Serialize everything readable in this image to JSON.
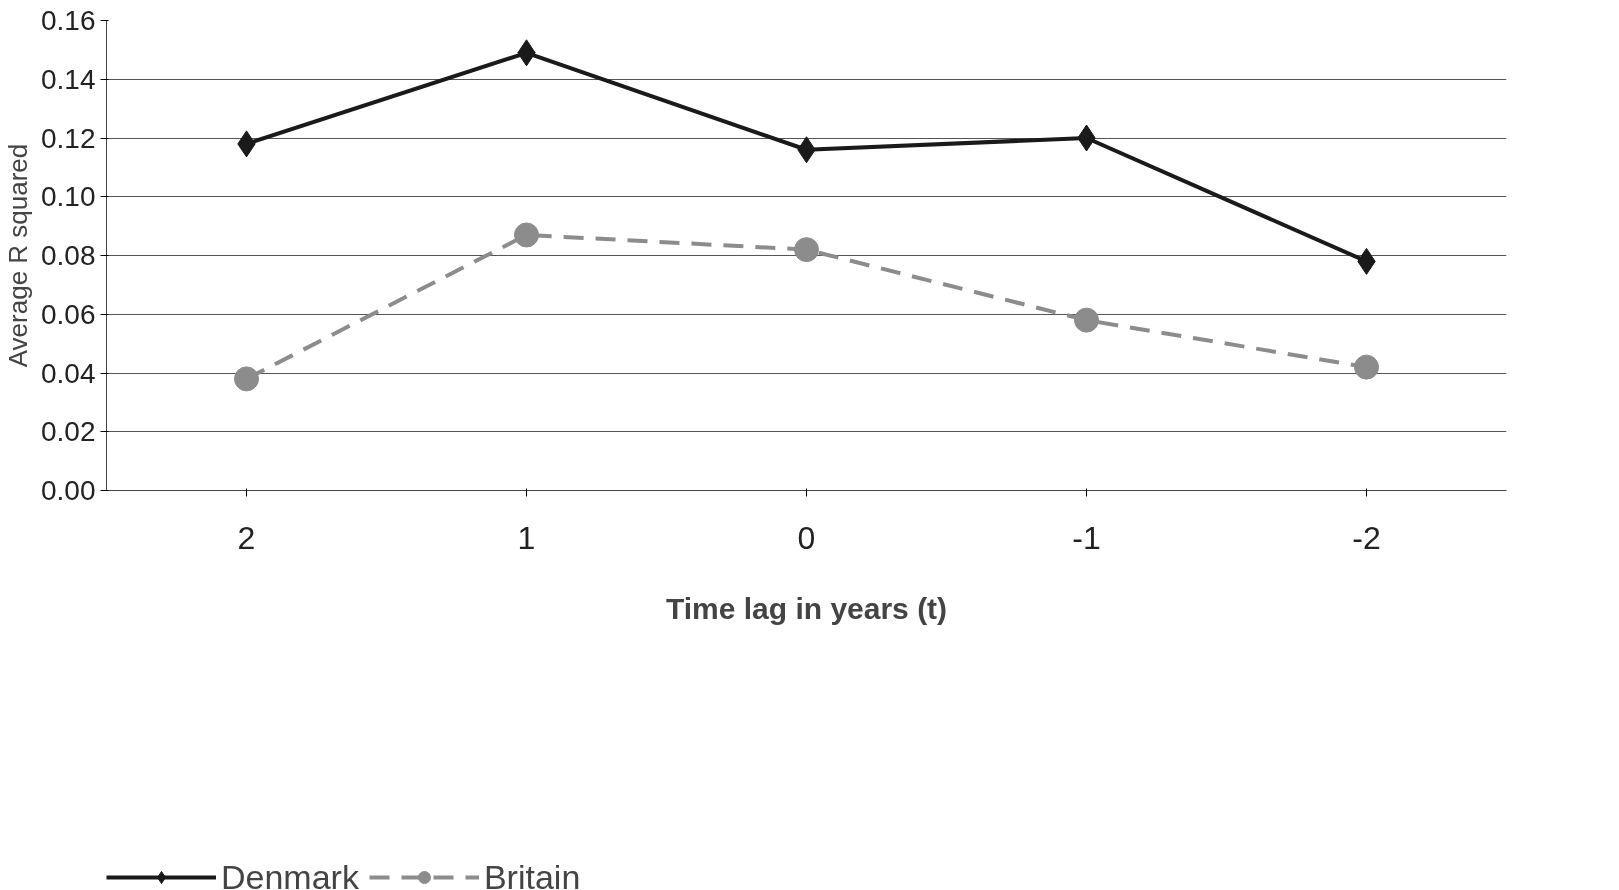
{
  "chart_data": {
    "type": "line",
    "xlabel": "Time lag in years (t)",
    "ylabel": "Average R squared",
    "categories": [
      "2",
      "1",
      "0",
      "-1",
      "-2"
    ],
    "series": [
      {
        "name": "Denmark",
        "color": "#1a1a1a",
        "values": [
          0.118,
          0.149,
          0.116,
          0.12,
          0.078
        ],
        "marker": "diamond",
        "line_style": "solid"
      },
      {
        "name": "Britain",
        "color": "#8c8c8c",
        "values": [
          0.038,
          0.087,
          0.082,
          0.058,
          0.042
        ],
        "marker": "circle",
        "line_style": "dashed"
      }
    ],
    "ylim": [
      0,
      0.16
    ],
    "yticks": [
      {
        "value": 0,
        "label": "0.00"
      },
      {
        "value": 0.02,
        "label": "0.02"
      },
      {
        "value": 0.04,
        "label": "0.04"
      },
      {
        "value": 0.06,
        "label": "0.06"
      },
      {
        "value": 0.08,
        "label": "0.08"
      },
      {
        "value": 0.1,
        "label": "0.10"
      },
      {
        "value": 0.12,
        "label": "0.12"
      },
      {
        "value": 0.14,
        "label": "0.14"
      },
      {
        "value": 0.16,
        "label": "0.16"
      }
    ],
    "grid": "y",
    "legend": "bottom"
  }
}
